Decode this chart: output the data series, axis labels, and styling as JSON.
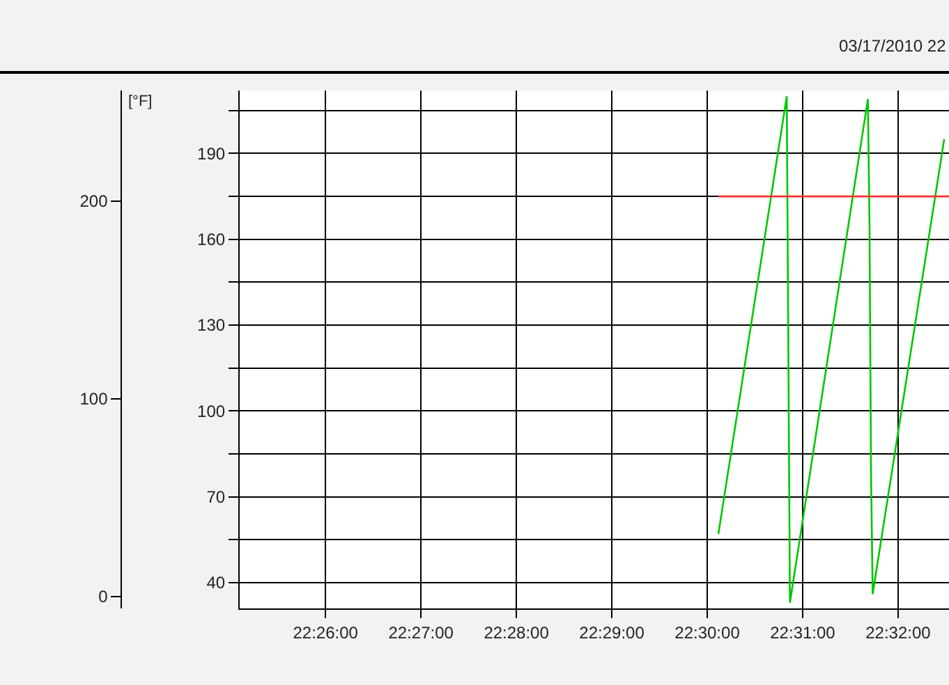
{
  "chart_data": {
    "type": "line",
    "title": "03/17/2010 22",
    "x": [
      "2010-03-17T22:30:07",
      "2010-03-17T22:30:50",
      "2010-03-17T22:30:51",
      "2010-03-17T22:30:52",
      "2010-03-17T22:31:41",
      "2010-03-17T22:31:42",
      "2010-03-17T22:31:43",
      "2010-03-17T22:31:44",
      "2010-03-17T22:32:29"
    ],
    "series": [
      {
        "color": "#00c800",
        "values": [
          57,
          210,
          121,
          33,
          209,
          166,
          78,
          36,
          195
        ]
      },
      {
        "color": "#ff3030",
        "x": [
          "2010-03-17T22:30:07",
          "2010-03-17T22:32:32"
        ],
        "values": [
          175,
          175
        ]
      }
    ],
    "xlim": [
      "2010-03-17T22:25:06",
      "2010-03-17T22:32:32"
    ],
    "xticks": [
      {
        "value": "2010-03-17T22:26:00",
        "label": "22:26:00"
      },
      {
        "value": "2010-03-17T22:27:00",
        "label": "22:27:00"
      },
      {
        "value": "2010-03-17T22:28:00",
        "label": "22:28:00"
      },
      {
        "value": "2010-03-17T22:29:00",
        "label": "22:29:00"
      },
      {
        "value": "2010-03-17T22:30:00",
        "label": "22:30:00"
      },
      {
        "value": "2010-03-17T22:31:00",
        "label": "22:31:00"
      },
      {
        "value": "2010-03-17T22:32:00",
        "label": "22:32:00"
      }
    ],
    "ylim": [
      31,
      212
    ],
    "yticks": [
      40,
      {
        "value": 55,
        "label": null
      },
      70,
      {
        "value": 85,
        "label": null
      },
      100,
      {
        "value": 115,
        "label": null
      },
      130,
      {
        "value": 145,
        "label": null
      },
      160,
      {
        "value": 175,
        "label": null
      },
      190,
      {
        "value": 205,
        "label": null
      }
    ],
    "y2label": "[°F]",
    "y2lim": [
      -6,
      256
    ],
    "y2ticks": [
      0,
      100,
      200
    ],
    "grid": true,
    "marker": "none",
    "line_style": "solid"
  }
}
